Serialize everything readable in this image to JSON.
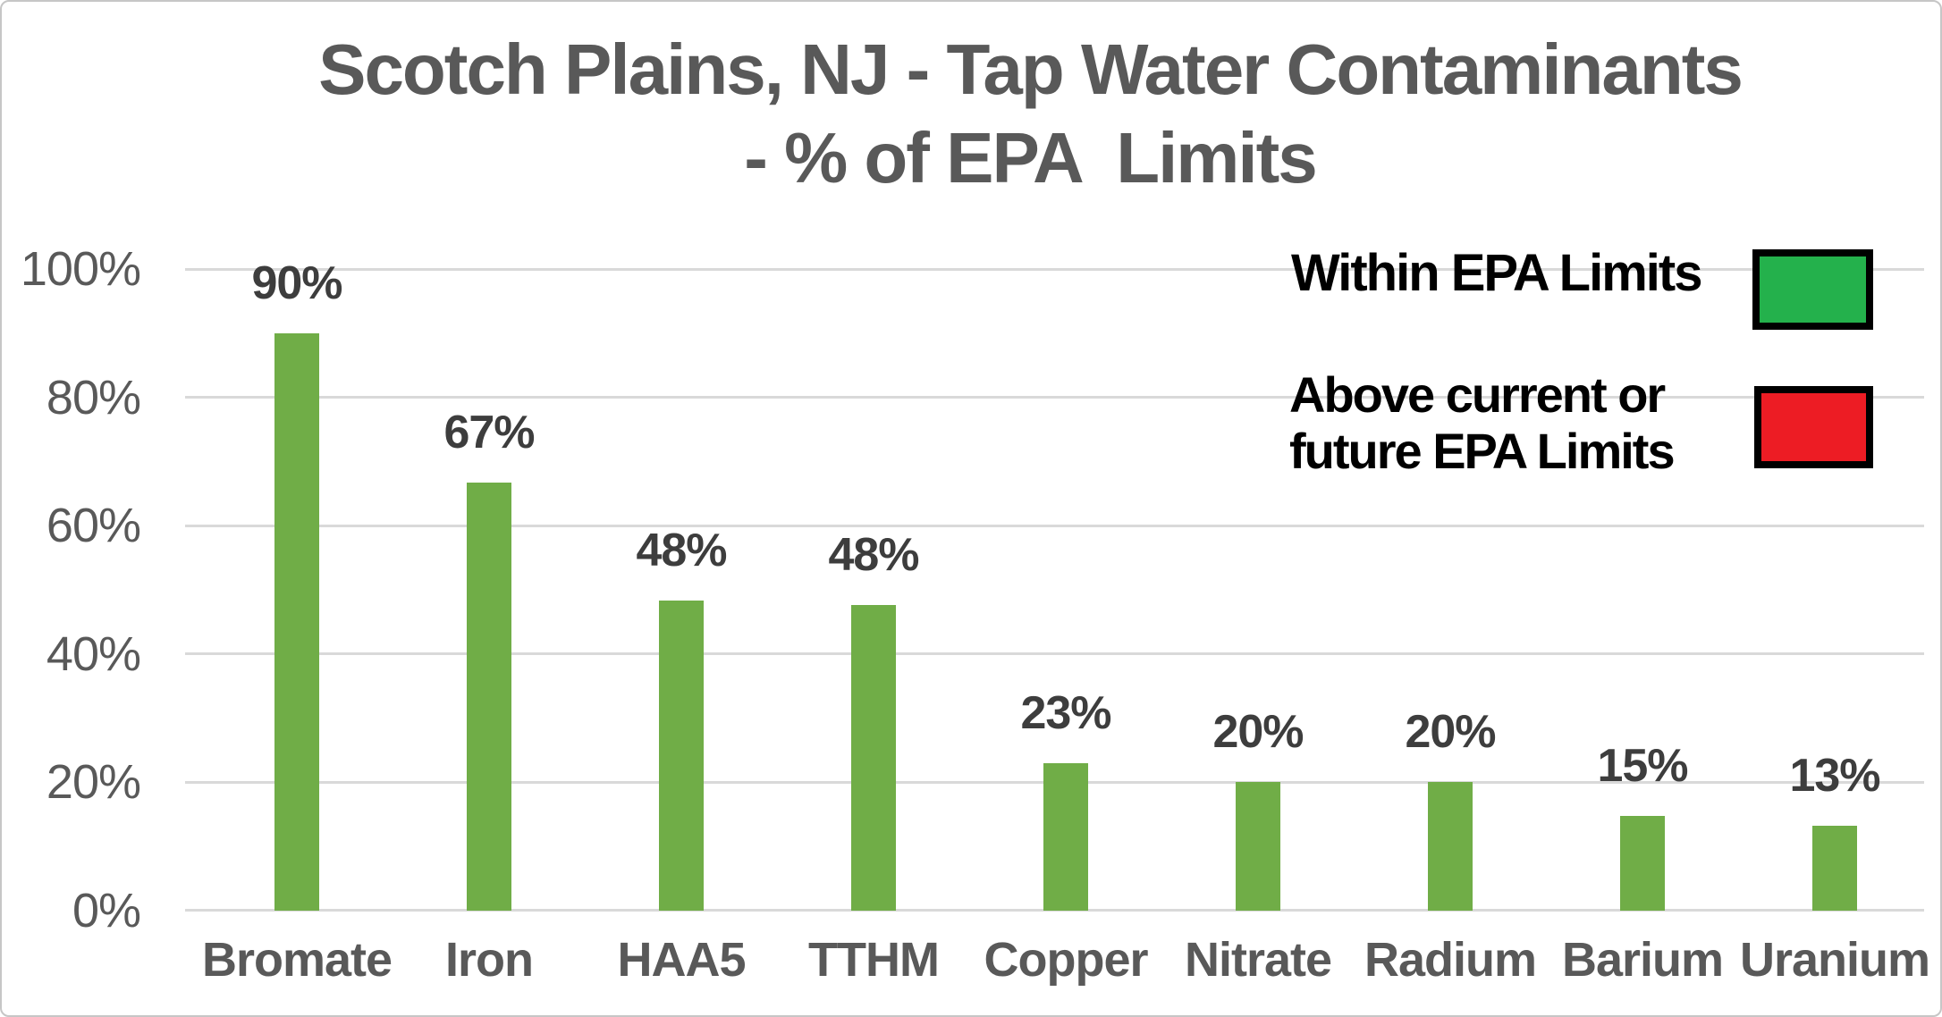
{
  "title": {
    "line1": "Scotch Plains, NJ - Tap Water Contaminants",
    "line2": "- % of EPA  Limits"
  },
  "y_axis": {
    "tick_labels": [
      "100%",
      "80%",
      "60%",
      "40%",
      "20%",
      "0%"
    ],
    "tick_values": [
      100,
      80,
      60,
      40,
      20,
      0
    ]
  },
  "legend": {
    "items": [
      {
        "label": "Within EPA Limits",
        "color": "#24B14C"
      },
      {
        "label_line1": "Above current or",
        "label_line2": "future EPA Limits",
        "color": "#ED1C24"
      }
    ]
  },
  "chart_data": {
    "type": "bar",
    "title": "Scotch Plains, NJ - Tap Water Contaminants - % of EPA Limits",
    "categories": [
      "Bromate",
      "Iron",
      "HAA5",
      "TTHM",
      "Copper",
      "Nitrate",
      "Radium",
      "Barium",
      "Uranium"
    ],
    "values": [
      90,
      67,
      48,
      48,
      23,
      20,
      20,
      15,
      13
    ],
    "value_labels": [
      "90%",
      "67%",
      "48%",
      "48%",
      "23%",
      "20%",
      "20%",
      "15%",
      "13%"
    ],
    "bar_render_pct": [
      90,
      66.7,
      48.4,
      47.6,
      23,
      20,
      20,
      14.8,
      13.2
    ],
    "bar_color": "#70AD47",
    "xlabel": "",
    "ylabel": "",
    "ylim": [
      0,
      100
    ],
    "grid": true,
    "gridline_color": "#D9D9D9",
    "legend_position": "top-right",
    "colors": {
      "title_text": "#595959",
      "axis_text": "#595959",
      "value_label_text": "#3D3D3D",
      "legend_text": "#000000",
      "legend_border": "#000000"
    }
  }
}
